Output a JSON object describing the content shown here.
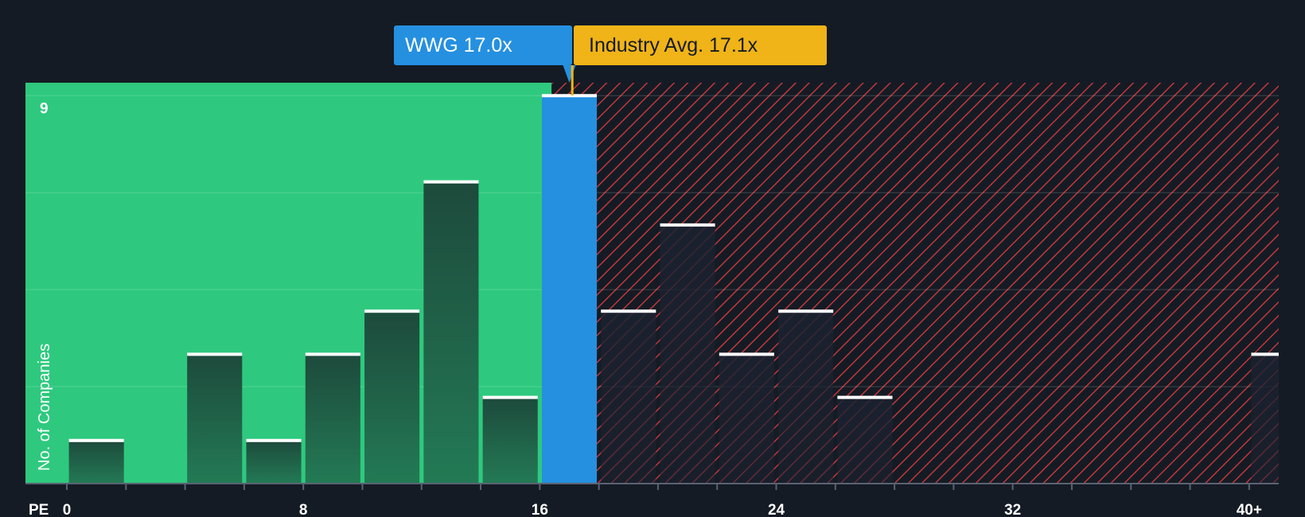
{
  "company_label": "WWG 17.0x",
  "industry_label": "Industry Avg. 17.1x",
  "colors": {
    "background": "#151b24",
    "green_zone": "#2ec97e",
    "red_zone_line": "#c0373d",
    "company_blue": "#2590e0",
    "industry_gold": "#f0b418",
    "bar_cap": "#ffffff"
  },
  "chart_data": {
    "type": "bar",
    "title": "",
    "xlabel": "PE",
    "ylabel": "No. of Companies",
    "x_ticks": [
      "0",
      "8",
      "16",
      "24",
      "32",
      "40+"
    ],
    "x_tick_values": [
      0,
      8,
      16,
      24,
      32,
      40
    ],
    "xlim": [
      -1.4,
      41.0
    ],
    "ylim": [
      0,
      9.3
    ],
    "y_tick_label": "9",
    "y_tick_value": 9,
    "bin_width": 2,
    "company_pe": 17.0,
    "industry_avg_pe": 17.1,
    "fair_zone_end": 16.4,
    "bars": [
      {
        "x": 0,
        "value": 1,
        "highlight": false
      },
      {
        "x": 4,
        "value": 3,
        "highlight": false
      },
      {
        "x": 6,
        "value": 1,
        "highlight": false
      },
      {
        "x": 8,
        "value": 3,
        "highlight": false
      },
      {
        "x": 10,
        "value": 4,
        "highlight": false
      },
      {
        "x": 12,
        "value": 7,
        "highlight": false
      },
      {
        "x": 14,
        "value": 2,
        "highlight": false
      },
      {
        "x": 16,
        "value": 9,
        "highlight": true
      },
      {
        "x": 18,
        "value": 4,
        "highlight": false
      },
      {
        "x": 20,
        "value": 6,
        "highlight": false
      },
      {
        "x": 22,
        "value": 3,
        "highlight": false
      },
      {
        "x": 24,
        "value": 4,
        "highlight": false
      },
      {
        "x": 26,
        "value": 2,
        "highlight": false
      },
      {
        "x": 40,
        "value": 3,
        "highlight": false
      }
    ]
  }
}
